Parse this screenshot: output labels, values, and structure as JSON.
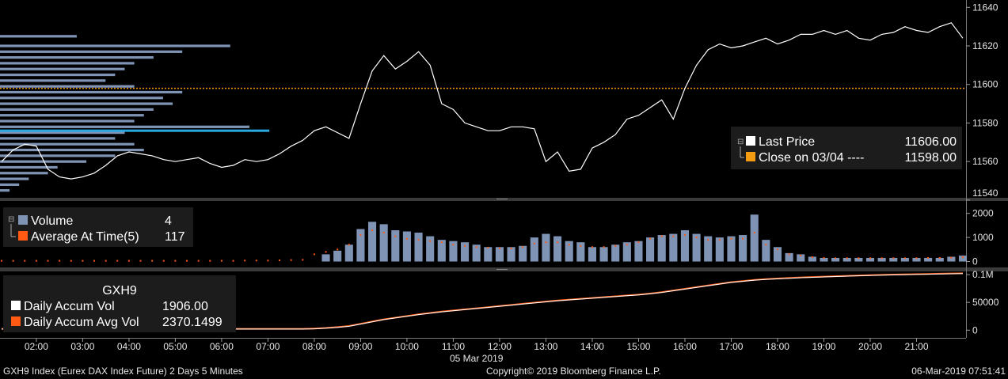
{
  "footer": {
    "left": "GXH9 Index (Eurex DAX Index Future) 2 Days 5 Minutes",
    "center": "Copyright© 2019 Bloomberg Finance L.P.",
    "right": "06-Mar-2019 07:51:41"
  },
  "colors": {
    "background": "#000000",
    "panel": "#1c1c1c",
    "price_line": "#ffffff",
    "close_line": "#f39c12",
    "volume_bar": "#7f93b5",
    "avg_dot": "#ff5a14",
    "profile": "#7f93b5",
    "profile_highlight": "#2aa8e0",
    "accum_avg": "#ff5a14"
  },
  "chart_data": [
    {
      "type": "line",
      "panel": "price",
      "ylim": [
        11542,
        11643
      ],
      "yticks": [
        11540,
        11560,
        11580,
        11600,
        11620,
        11640
      ],
      "legend": {
        "items": [
          {
            "swatch": "#ffffff",
            "label": "Last Price",
            "value": "11606.00"
          },
          {
            "swatch": "#f39c12",
            "label": "Close on 03/04 ----",
            "value": "11598.00"
          }
        ],
        "position": "right"
      },
      "close_reference": 11598,
      "x": [
        "01:15",
        "01:30",
        "01:45",
        "02:00",
        "02:15",
        "02:30",
        "02:45",
        "03:00",
        "03:15",
        "03:30",
        "03:45",
        "04:00",
        "04:15",
        "04:30",
        "04:45",
        "05:00",
        "05:15",
        "05:30",
        "05:45",
        "06:00",
        "06:15",
        "06:30",
        "06:45",
        "07:00",
        "07:15",
        "07:30",
        "07:45",
        "08:00",
        "08:15",
        "08:30",
        "08:45",
        "09:00",
        "09:15",
        "09:30",
        "09:45",
        "10:00",
        "10:15",
        "10:30",
        "10:45",
        "11:00",
        "11:15",
        "11:30",
        "11:45",
        "12:00",
        "12:15",
        "12:30",
        "12:45",
        "13:00",
        "13:15",
        "13:30",
        "13:45",
        "14:00",
        "14:15",
        "14:30",
        "14:45",
        "15:00",
        "15:15",
        "15:30",
        "15:45",
        "16:00",
        "16:15",
        "16:30",
        "16:45",
        "17:00",
        "17:15",
        "17:30",
        "17:45",
        "18:00",
        "18:15",
        "18:30",
        "18:45",
        "19:00",
        "19:15",
        "19:30",
        "19:45",
        "20:00",
        "20:15",
        "20:30",
        "20:45",
        "21:00",
        "21:15",
        "21:30",
        "21:45",
        "22:00"
      ],
      "series": [
        {
          "values": [
            11560,
            11566,
            11569,
            11568,
            11556,
            11552,
            11551,
            11552,
            11554,
            11558,
            11563,
            11565,
            11564,
            11563,
            11561,
            11560,
            11561,
            11562,
            11559,
            11557,
            11558,
            11561,
            11560,
            11561,
            11564,
            11568,
            11571,
            11576,
            11578,
            11575,
            11572,
            11590,
            11607,
            11615,
            11608,
            11612,
            11617,
            11610,
            11590,
            11587,
            11580,
            11578,
            11576,
            11576,
            11578,
            11578,
            11577,
            11560,
            11565,
            11555,
            11556,
            11567,
            11570,
            11574,
            11582,
            11584,
            11588,
            11592,
            11582,
            11598,
            11610,
            11618,
            11621,
            11619,
            11620,
            11622,
            11624,
            11621,
            11623,
            11626,
            11626,
            11628,
            11626,
            11628,
            11624,
            11623,
            11626,
            11627,
            11630,
            11628,
            11627,
            11630,
            11632,
            11624
          ]
        }
      ]
    },
    {
      "type": "bar",
      "panel": "volume",
      "ylim": [
        -180,
        2450
      ],
      "yticks": [
        0,
        1000,
        2000
      ],
      "legend": {
        "items": [
          {
            "swatch": "#7f93b5",
            "label": "Volume",
            "value": "4"
          },
          {
            "swatch": "#ff5a14",
            "label": "Average At Time(5)",
            "value": "117"
          }
        ],
        "position": "top-left"
      },
      "series": [
        {
          "name": "Volume",
          "values": [
            0,
            0,
            0,
            0,
            0,
            0,
            0,
            0,
            0,
            0,
            0,
            0,
            0,
            0,
            0,
            0,
            0,
            0,
            0,
            0,
            0,
            0,
            0,
            0,
            0,
            0,
            0,
            0,
            300,
            450,
            700,
            1350,
            1650,
            1550,
            1300,
            1250,
            1200,
            1050,
            900,
            850,
            800,
            700,
            600,
            600,
            600,
            650,
            1000,
            1150,
            1050,
            850,
            800,
            600,
            600,
            700,
            800,
            850,
            1000,
            1100,
            1150,
            1300,
            1150,
            1050,
            1000,
            1050,
            1100,
            1950,
            900,
            600,
            350,
            300,
            200,
            150,
            150,
            150,
            150,
            150,
            150,
            150,
            150,
            150,
            150,
            150,
            200,
            250
          ]
        },
        {
          "name": "Average At Time(5)",
          "values": [
            30,
            30,
            30,
            30,
            30,
            30,
            30,
            30,
            30,
            30,
            30,
            30,
            30,
            30,
            30,
            30,
            30,
            30,
            30,
            30,
            30,
            40,
            40,
            40,
            50,
            60,
            70,
            300,
            400,
            500,
            700,
            1100,
            1300,
            1200,
            1050,
            950,
            900,
            850,
            800,
            700,
            650,
            600,
            580,
            550,
            550,
            600,
            750,
            800,
            800,
            700,
            650,
            600,
            600,
            650,
            700,
            800,
            950,
            1050,
            1050,
            1100,
            1000,
            900,
            900,
            950,
            950,
            1200,
            700,
            500,
            300,
            250,
            180,
            150,
            140,
            140,
            140,
            140,
            140,
            140,
            140,
            140,
            150,
            150,
            160,
            180
          ]
        }
      ]
    },
    {
      "type": "area",
      "panel": "accum",
      "ylim": [
        -11000,
        103000
      ],
      "yticks": [
        0,
        50000
      ],
      "ytick_labels": [
        "0",
        "50000"
      ],
      "top_label": "0.1M",
      "legend": {
        "title": "GXH9",
        "items": [
          {
            "swatch": "#ffffff",
            "label": "Daily Accum Vol",
            "value": "1906.00"
          },
          {
            "swatch": "#ff5a14",
            "label": "Daily Accum Avg Vol",
            "value": "2370.1499"
          }
        ],
        "position": "top-left"
      },
      "series": [
        {
          "name": "Daily Accum Vol",
          "values": [
            1906,
            1906,
            1906,
            1906,
            1906,
            1906,
            1906,
            1906,
            1906,
            1906,
            1906,
            1906,
            1906,
            1906,
            1906,
            1906,
            1906,
            1906,
            1906,
            1906,
            1906,
            1906,
            1906,
            1906,
            1906,
            1906,
            1906,
            2400,
            3500,
            5000,
            7000,
            11000,
            15000,
            19000,
            22000,
            25000,
            28000,
            30500,
            33000,
            35000,
            37000,
            39000,
            41000,
            43000,
            45000,
            47000,
            49000,
            51000,
            53000,
            54500,
            56000,
            57500,
            59000,
            60500,
            62000,
            63500,
            65500,
            68000,
            71000,
            74000,
            77000,
            80000,
            83000,
            86000,
            88000,
            90000,
            91500,
            92500,
            93500,
            94500,
            95200,
            95900,
            96600,
            97300,
            98000,
            98600,
            99100,
            99600,
            100000,
            100400,
            100800,
            101200,
            101600,
            102000
          ]
        },
        {
          "name": "Daily Accum Avg Vol",
          "values": [
            2370,
            2370,
            2370,
            2370,
            2370,
            2370,
            2370,
            2370,
            2370,
            2370,
            2370,
            2370,
            2370,
            2370,
            2370,
            2370,
            2370,
            2370,
            2370,
            2370,
            2370,
            2370,
            2370,
            2370,
            2370,
            2370,
            2370,
            2900,
            4000,
            5500,
            7500,
            11500,
            15500,
            19500,
            22500,
            25500,
            28500,
            31000,
            33500,
            35500,
            37500,
            39500,
            41500,
            43500,
            45500,
            47500,
            49500,
            51500,
            53500,
            55000,
            56500,
            58000,
            59500,
            61000,
            62500,
            64000,
            66000,
            68500,
            71500,
            74500,
            77500,
            80500,
            83500,
            86500,
            88500,
            90500,
            92000,
            93000,
            94000,
            95000,
            95700,
            96400,
            97100,
            97800,
            98500,
            99100,
            99600,
            100100,
            100500,
            100900,
            101300,
            101700,
            102100,
            102500
          ]
        }
      ]
    },
    {
      "type": "bar",
      "panel": "volume-profile",
      "orientation": "horizontal",
      "price_levels": [
        11625,
        11620,
        11617,
        11614,
        11611,
        11608,
        11605,
        11602,
        11599,
        11596,
        11593,
        11590,
        11587,
        11584,
        11581,
        11578,
        11575,
        11572,
        11569,
        11566,
        11563,
        11560,
        11557,
        11554,
        11551,
        11548,
        11545
      ],
      "volumes": [
        40,
        120,
        95,
        80,
        70,
        65,
        60,
        55,
        70,
        95,
        85,
        90,
        80,
        75,
        70,
        130,
        65,
        60,
        70,
        75,
        60,
        45,
        30,
        25,
        15,
        10,
        5
      ],
      "highlight_level": 11576
    },
    {
      "type": "table",
      "panel": "time-axis",
      "tick_labels": [
        "02:00",
        "03:00",
        "04:00",
        "05:00",
        "06:00",
        "07:00",
        "08:00",
        "09:00",
        "10:00",
        "11:00",
        "12:00",
        "13:00",
        "14:00",
        "15:00",
        "16:00",
        "17:00",
        "18:00",
        "19:00",
        "20:00",
        "21:00"
      ],
      "date_label": "05 Mar 2019"
    }
  ]
}
